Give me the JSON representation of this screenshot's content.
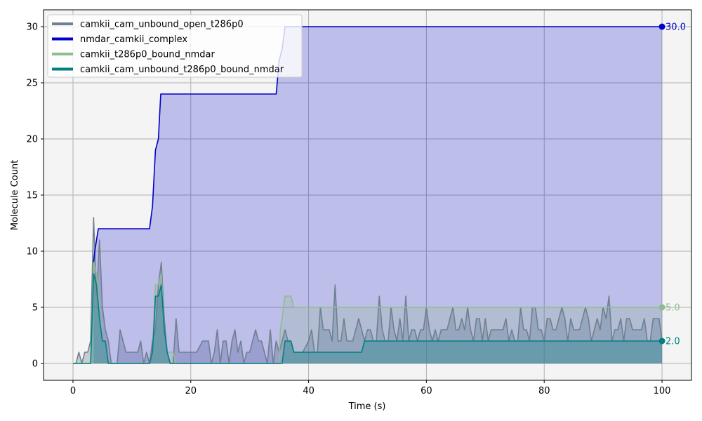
{
  "chart_data": {
    "type": "line",
    "xlabel": "Time (s)",
    "ylabel": "Molecule Count",
    "xlim": [
      -5,
      105
    ],
    "ylim": [
      -1.5,
      31.5
    ],
    "xticks": [
      0,
      20,
      40,
      60,
      80,
      100
    ],
    "yticks": [
      0,
      5,
      10,
      15,
      20,
      25,
      30
    ],
    "grid": true,
    "legend_position": "top-left",
    "background_color": "#f4f4f4",
    "series": [
      {
        "name": "camkii_cam_unbound_open_t286p0",
        "color": "#708090",
        "fill_opacity": 0.35,
        "end_label": "",
        "points": [
          [
            0,
            0
          ],
          [
            0.5,
            0
          ],
          [
            1,
            1
          ],
          [
            1.5,
            0
          ],
          [
            2,
            1
          ],
          [
            2.5,
            1
          ],
          [
            3,
            2
          ],
          [
            3.5,
            13
          ],
          [
            4,
            6
          ],
          [
            4.5,
            11
          ],
          [
            5,
            5
          ],
          [
            5.5,
            3
          ],
          [
            6,
            2
          ],
          [
            6.5,
            0
          ],
          [
            7,
            0
          ],
          [
            7.5,
            0
          ],
          [
            8,
            3
          ],
          [
            8.5,
            2
          ],
          [
            9,
            1
          ],
          [
            9.5,
            1
          ],
          [
            10,
            1
          ],
          [
            10.5,
            1
          ],
          [
            11,
            1
          ],
          [
            11.5,
            2
          ],
          [
            12,
            0
          ],
          [
            12.5,
            1
          ],
          [
            13,
            0
          ],
          [
            13.5,
            2
          ],
          [
            14,
            3
          ],
          [
            14.5,
            7
          ],
          [
            15,
            9
          ],
          [
            15.5,
            4
          ],
          [
            16,
            1
          ],
          [
            16.5,
            0
          ],
          [
            17,
            0
          ],
          [
            17.5,
            4
          ],
          [
            18,
            1
          ],
          [
            19,
            1
          ],
          [
            20,
            1
          ],
          [
            21,
            1
          ],
          [
            22,
            2
          ],
          [
            23,
            2
          ],
          [
            23.5,
            0
          ],
          [
            24,
            1
          ],
          [
            24.5,
            3
          ],
          [
            25,
            0
          ],
          [
            25.5,
            2
          ],
          [
            26,
            2
          ],
          [
            26.5,
            0
          ],
          [
            27,
            2
          ],
          [
            27.5,
            3
          ],
          [
            28,
            1
          ],
          [
            28.5,
            2
          ],
          [
            29,
            0
          ],
          [
            29.5,
            1
          ],
          [
            30,
            1
          ],
          [
            31,
            3
          ],
          [
            31.5,
            2
          ],
          [
            32,
            2
          ],
          [
            33,
            0
          ],
          [
            33.5,
            3
          ],
          [
            34,
            0
          ],
          [
            34.5,
            2
          ],
          [
            35,
            1
          ],
          [
            35.5,
            2
          ],
          [
            36,
            3
          ],
          [
            36.5,
            2
          ],
          [
            37,
            2
          ],
          [
            37.5,
            1
          ],
          [
            38,
            1
          ],
          [
            39,
            1
          ],
          [
            40,
            2
          ],
          [
            40.5,
            3
          ],
          [
            41,
            1
          ],
          [
            41.5,
            1
          ],
          [
            42,
            5
          ],
          [
            42.5,
            3
          ],
          [
            43,
            3
          ],
          [
            43.5,
            3
          ],
          [
            44,
            2
          ],
          [
            44.5,
            7
          ],
          [
            45,
            2
          ],
          [
            45.5,
            2
          ],
          [
            46,
            4
          ],
          [
            46.5,
            2
          ],
          [
            47,
            2
          ],
          [
            47.5,
            2
          ],
          [
            48,
            3
          ],
          [
            48.5,
            4
          ],
          [
            49,
            3
          ],
          [
            49.5,
            2
          ],
          [
            50,
            3
          ],
          [
            50.5,
            3
          ],
          [
            51,
            2
          ],
          [
            51.5,
            2
          ],
          [
            52,
            6
          ],
          [
            52.5,
            3
          ],
          [
            53,
            2
          ],
          [
            53.5,
            2
          ],
          [
            54,
            5
          ],
          [
            54.5,
            3
          ],
          [
            55,
            2
          ],
          [
            55.5,
            4
          ],
          [
            56,
            2
          ],
          [
            56.5,
            6
          ],
          [
            57,
            2
          ],
          [
            57.5,
            3
          ],
          [
            58,
            3
          ],
          [
            58.5,
            2
          ],
          [
            59,
            3
          ],
          [
            59.5,
            3
          ],
          [
            60,
            5
          ],
          [
            60.5,
            3
          ],
          [
            61,
            2
          ],
          [
            61.5,
            3
          ],
          [
            62,
            2
          ],
          [
            62.5,
            3
          ],
          [
            63,
            3
          ],
          [
            63.5,
            3
          ],
          [
            64,
            4
          ],
          [
            64.5,
            5
          ],
          [
            65,
            3
          ],
          [
            65.5,
            3
          ],
          [
            66,
            4
          ],
          [
            66.5,
            3
          ],
          [
            67,
            5
          ],
          [
            67.5,
            3
          ],
          [
            68,
            2
          ],
          [
            68.5,
            4
          ],
          [
            69,
            4
          ],
          [
            69.5,
            2
          ],
          [
            70,
            4
          ],
          [
            70.5,
            2
          ],
          [
            71,
            3
          ],
          [
            71.5,
            3
          ],
          [
            72,
            3
          ],
          [
            72.5,
            3
          ],
          [
            73,
            3
          ],
          [
            73.5,
            4
          ],
          [
            74,
            2
          ],
          [
            74.5,
            3
          ],
          [
            75,
            2
          ],
          [
            75.5,
            2
          ],
          [
            76,
            5
          ],
          [
            76.5,
            3
          ],
          [
            77,
            3
          ],
          [
            77.5,
            2
          ],
          [
            78,
            5
          ],
          [
            78.5,
            5
          ],
          [
            79,
            3
          ],
          [
            79.5,
            3
          ],
          [
            80,
            2
          ],
          [
            80.5,
            4
          ],
          [
            81,
            4
          ],
          [
            81.5,
            3
          ],
          [
            82,
            3
          ],
          [
            82.5,
            4
          ],
          [
            83,
            5
          ],
          [
            83.5,
            4
          ],
          [
            84,
            2
          ],
          [
            84.5,
            4
          ],
          [
            85,
            3
          ],
          [
            85.5,
            3
          ],
          [
            86,
            3
          ],
          [
            86.5,
            4
          ],
          [
            87,
            5
          ],
          [
            87.5,
            4
          ],
          [
            88,
            2
          ],
          [
            88.5,
            3
          ],
          [
            89,
            4
          ],
          [
            89.5,
            3
          ],
          [
            90,
            5
          ],
          [
            90.5,
            4
          ],
          [
            91,
            6
          ],
          [
            91.5,
            2
          ],
          [
            92,
            3
          ],
          [
            92.5,
            3
          ],
          [
            93,
            4
          ],
          [
            93.5,
            2
          ],
          [
            94,
            4
          ],
          [
            94.5,
            4
          ],
          [
            95,
            3
          ],
          [
            95.5,
            3
          ],
          [
            96,
            3
          ],
          [
            96.5,
            3
          ],
          [
            97,
            4
          ],
          [
            97.5,
            2
          ],
          [
            98,
            2
          ],
          [
            98.5,
            4
          ],
          [
            99,
            4
          ],
          [
            99.5,
            4
          ],
          [
            100,
            2
          ]
        ]
      },
      {
        "name": "nmdar_camkii_complex",
        "color": "#0000c8",
        "fill_opacity": 0.22,
        "end_label": "30.0",
        "points": [
          [
            3.5,
            9
          ],
          [
            3.7,
            10
          ],
          [
            4,
            11
          ],
          [
            4.3,
            12
          ],
          [
            13,
            12
          ],
          [
            13.5,
            14
          ],
          [
            14,
            19
          ],
          [
            14.5,
            20
          ],
          [
            14.9,
            24
          ],
          [
            34.5,
            24
          ],
          [
            35,
            27
          ],
          [
            35.5,
            28
          ],
          [
            36,
            30
          ],
          [
            100,
            30
          ]
        ]
      },
      {
        "name": "camkii_t286p0_bound_nmdar",
        "color": "#8fbc8f",
        "fill_opacity": 0.25,
        "end_label": "5.0",
        "points": [
          [
            0,
            0
          ],
          [
            3,
            0
          ],
          [
            3.5,
            9
          ],
          [
            4,
            8
          ],
          [
            4.5,
            5
          ],
          [
            5,
            2
          ],
          [
            5.5,
            2
          ],
          [
            6,
            0
          ],
          [
            13,
            0
          ],
          [
            13.5,
            1
          ],
          [
            14,
            7
          ],
          [
            14.5,
            7
          ],
          [
            15,
            8
          ],
          [
            15.5,
            3
          ],
          [
            16,
            1
          ],
          [
            16.5,
            1
          ],
          [
            17,
            1
          ],
          [
            17.5,
            0
          ],
          [
            35,
            0
          ],
          [
            35.2,
            3
          ],
          [
            35.5,
            4
          ],
          [
            36,
            6
          ],
          [
            37,
            6
          ],
          [
            37.5,
            5
          ],
          [
            100,
            5
          ]
        ]
      },
      {
        "name": "camkii_cam_unbound_t286p0_bound_nmdar",
        "color": "#008080",
        "fill_opacity": 0.3,
        "end_label": "2.0",
        "points": [
          [
            0,
            0
          ],
          [
            3,
            0
          ],
          [
            3.5,
            8
          ],
          [
            4,
            7
          ],
          [
            4.5,
            4
          ],
          [
            5,
            2
          ],
          [
            5.5,
            2
          ],
          [
            6,
            0
          ],
          [
            13,
            0
          ],
          [
            13.5,
            1
          ],
          [
            14,
            6
          ],
          [
            14.5,
            6
          ],
          [
            15,
            7
          ],
          [
            15.5,
            3
          ],
          [
            16,
            1
          ],
          [
            16.5,
            0
          ],
          [
            35,
            0
          ],
          [
            35.5,
            0
          ],
          [
            36,
            2
          ],
          [
            37,
            2
          ],
          [
            37.5,
            1
          ],
          [
            49,
            1
          ],
          [
            49.5,
            2
          ],
          [
            100,
            2
          ]
        ]
      }
    ]
  }
}
